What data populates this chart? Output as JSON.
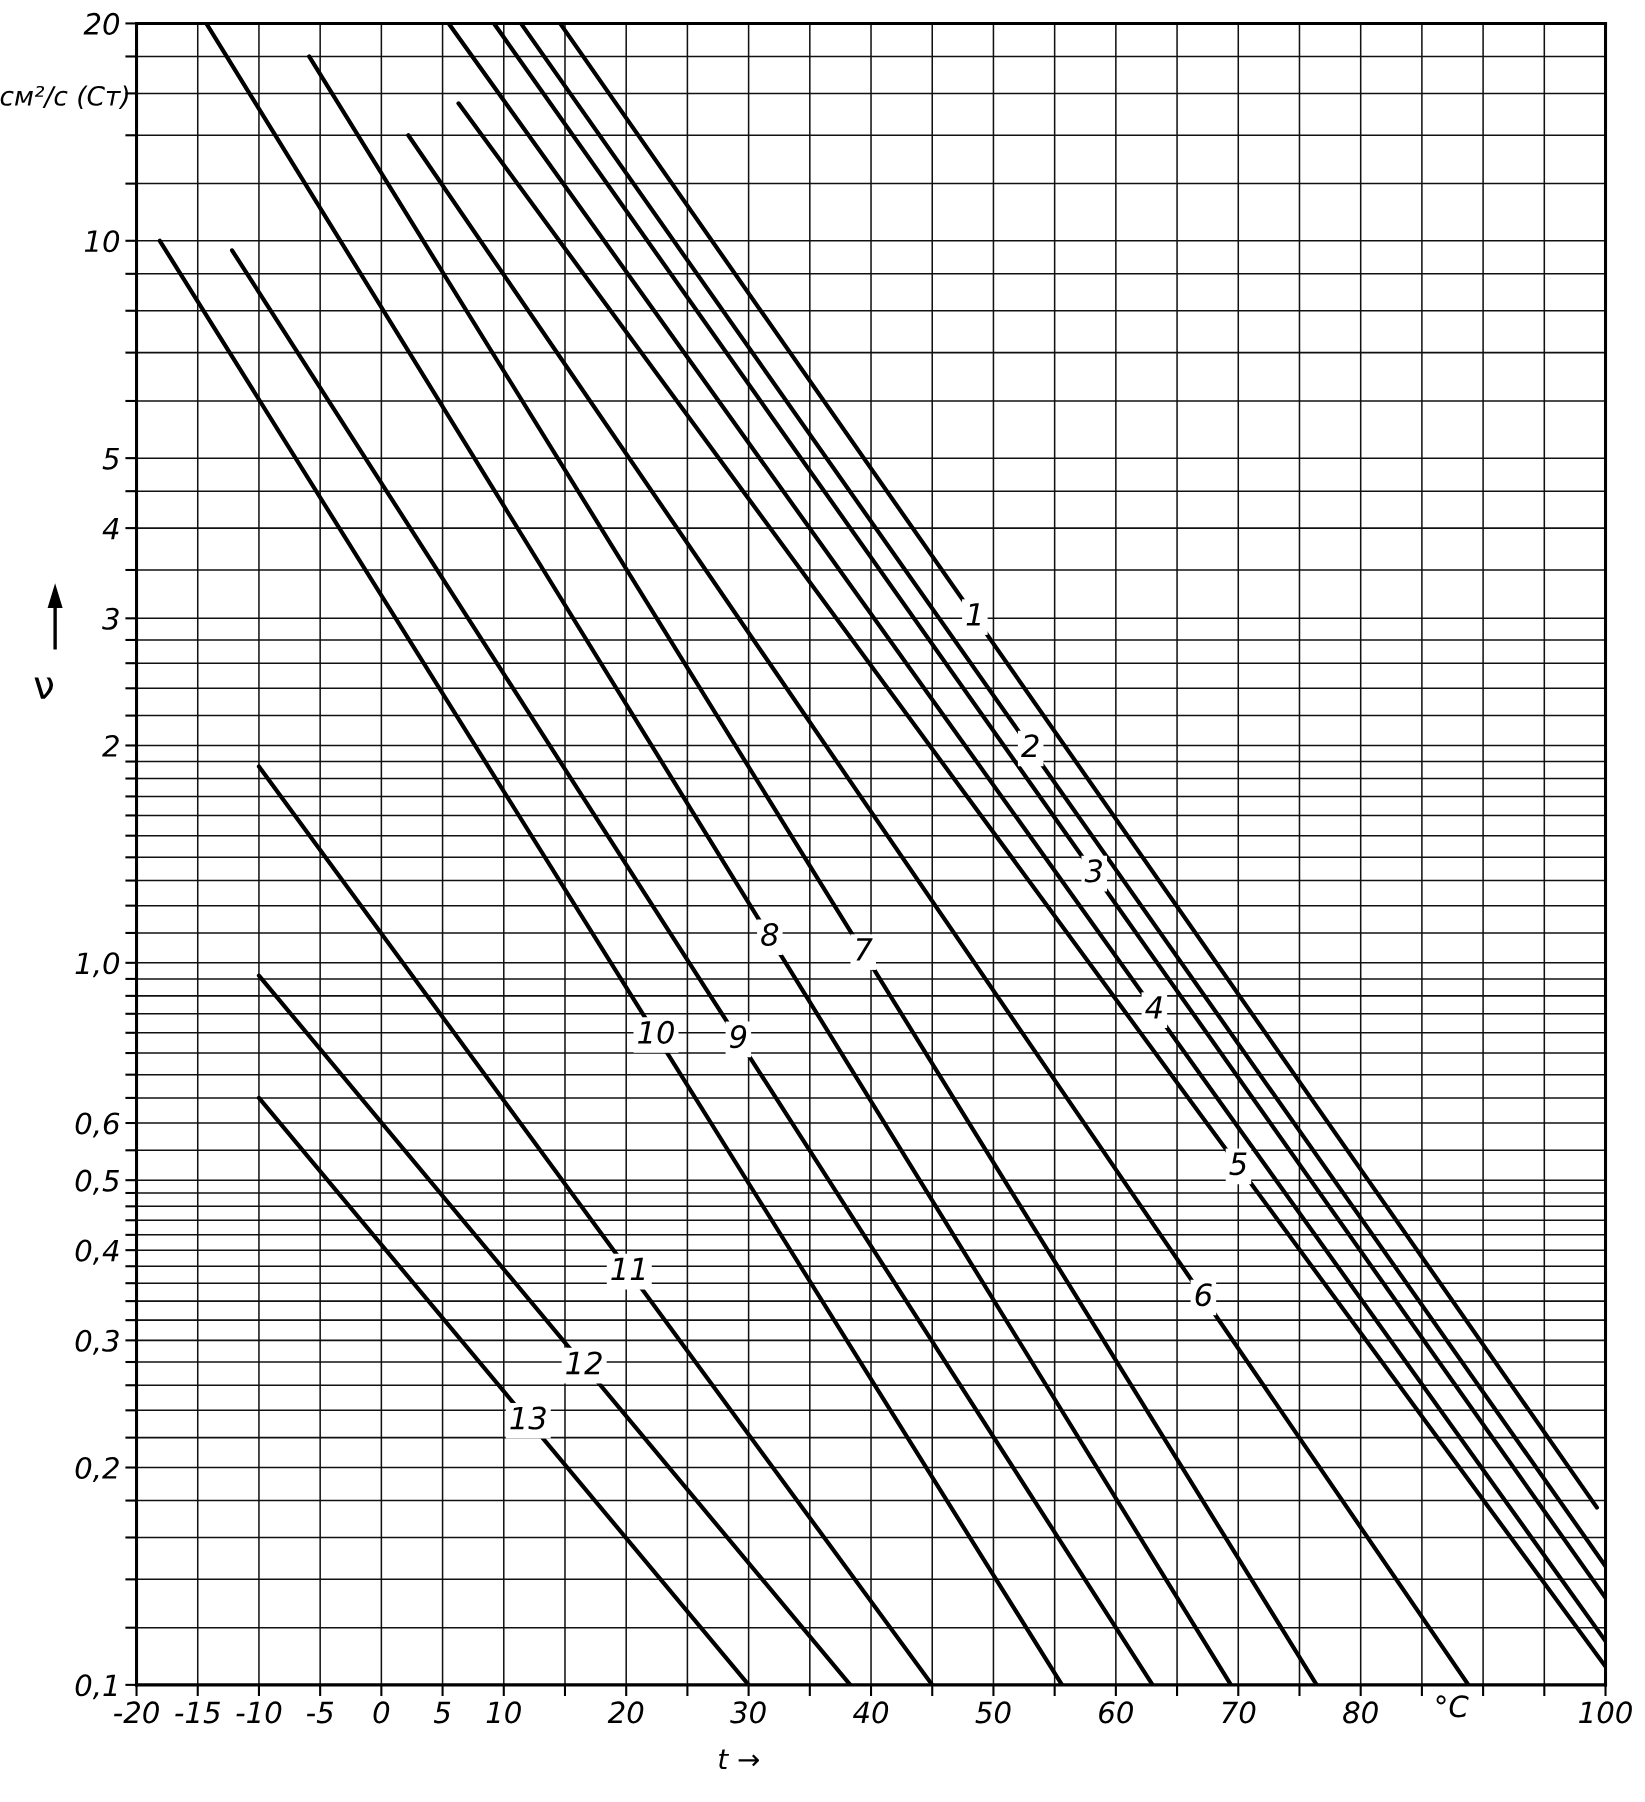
{
  "chart_data": {
    "type": "line",
    "xlabel": "t →",
    "ylabel": "ν",
    "log": true,
    "grid": true,
    "marker": "none",
    "line_style": "solid",
    "annotations": [
      "см²/с (Ст)",
      "°C"
    ],
    "xlim": [
      -20,
      100
    ],
    "ylim": [
      0.1,
      20
    ],
    "xticks": [
      -20,
      -15,
      -10,
      -5,
      0,
      5,
      10,
      {
        "value": 15,
        "label": null
      },
      20,
      {
        "value": 25,
        "label": null
      },
      30,
      {
        "value": 35,
        "label": null
      },
      40,
      {
        "value": 45,
        "label": null
      },
      50,
      {
        "value": 55,
        "label": null
      },
      60,
      {
        "value": 65,
        "label": null
      },
      70,
      {
        "value": 75,
        "label": null
      },
      80,
      {
        "value": 85,
        "label": null
      },
      {
        "value": 90,
        "label": null
      },
      {
        "value": 95,
        "label": null
      },
      100
    ],
    "yticks": [
      {
        "value": 0.1,
        "label": "0,1"
      },
      {
        "value": 0.12,
        "label": null
      },
      {
        "value": 0.14,
        "label": null
      },
      {
        "value": 0.16,
        "label": null
      },
      {
        "value": 0.18,
        "label": null
      },
      {
        "value": 0.2,
        "label": "0,2"
      },
      {
        "value": 0.22,
        "label": null
      },
      {
        "value": 0.24,
        "label": null
      },
      {
        "value": 0.26,
        "label": null
      },
      {
        "value": 0.28,
        "label": null
      },
      {
        "value": 0.3,
        "label": "0,3"
      },
      {
        "value": 0.32,
        "label": null
      },
      {
        "value": 0.34,
        "label": null
      },
      {
        "value": 0.36,
        "label": null
      },
      {
        "value": 0.38,
        "label": null
      },
      {
        "value": 0.4,
        "label": "0,4"
      },
      {
        "value": 0.42,
        "label": null
      },
      {
        "value": 0.44,
        "label": null
      },
      {
        "value": 0.46,
        "label": null
      },
      {
        "value": 0.48,
        "label": null
      },
      {
        "value": 0.5,
        "label": "0,5"
      },
      {
        "value": 0.55,
        "label": null
      },
      {
        "value": 0.6,
        "label": "0,6"
      },
      {
        "value": 0.65,
        "label": null
      },
      {
        "value": 0.7,
        "label": null
      },
      {
        "value": 0.75,
        "label": null
      },
      {
        "value": 0.8,
        "label": null
      },
      {
        "value": 0.85,
        "label": null
      },
      {
        "value": 0.9,
        "label": null
      },
      {
        "value": 0.95,
        "label": null
      },
      {
        "value": 1,
        "label": "1,0"
      },
      {
        "value": 1.1,
        "label": null
      },
      {
        "value": 1.2,
        "label": null
      },
      {
        "value": 1.3,
        "label": null
      },
      {
        "value": 1.4,
        "label": null
      },
      {
        "value": 1.5,
        "label": null
      },
      {
        "value": 1.6,
        "label": null
      },
      {
        "value": 1.7,
        "label": null
      },
      {
        "value": 1.8,
        "label": null
      },
      {
        "value": 1.9,
        "label": null
      },
      2,
      {
        "value": 2.2,
        "label": null
      },
      {
        "value": 2.4,
        "label": null
      },
      {
        "value": 2.6,
        "label": null
      },
      {
        "value": 2.8,
        "label": null
      },
      3,
      {
        "value": 3.5,
        "label": null
      },
      4,
      {
        "value": 4.5,
        "label": null
      },
      5,
      {
        "value": 6,
        "label": null
      },
      {
        "value": 7,
        "label": null
      },
      {
        "value": 8,
        "label": null
      },
      {
        "value": 9,
        "label": null
      },
      10,
      {
        "value": 12,
        "label": null
      },
      {
        "value": 14,
        "label": null
      },
      {
        "value": 16,
        "label": null
      },
      {
        "value": 18,
        "label": null
      },
      20
    ],
    "series": [
      {
        "name": "1",
        "color": "#000000",
        "x": [
          14.6,
          99.3
        ],
        "values": [
          20,
          0.176
        ]
      },
      {
        "name": "2",
        "color": "#000000",
        "x": [
          11.4,
          100
        ],
        "values": [
          20,
          0.146
        ]
      },
      {
        "name": "3",
        "color": "#000000",
        "x": [
          9.2,
          100
        ],
        "values": [
          20,
          0.132
        ]
      },
      {
        "name": "4",
        "color": "#000000",
        "x": [
          5.5,
          100
        ],
        "values": [
          20,
          0.115
        ]
      },
      {
        "name": "5",
        "color": "#000000",
        "x": [
          6.3,
          100
        ],
        "values": [
          15.5,
          0.106
        ]
      },
      {
        "name": "6",
        "color": "#000000",
        "x": [
          2.2,
          88.8
        ],
        "values": [
          14,
          0.1
        ]
      },
      {
        "name": "7",
        "color": "#000000",
        "x": [
          -5.9,
          76.4
        ],
        "values": [
          18,
          0.1
        ]
      },
      {
        "name": "8",
        "color": "#000000",
        "x": [
          -14.3,
          69.4
        ],
        "values": [
          20,
          0.1
        ]
      },
      {
        "name": "9",
        "color": "#000000",
        "x": [
          -12.2,
          63.0
        ],
        "values": [
          9.7,
          0.1
        ]
      },
      {
        "name": "10",
        "color": "#000000",
        "x": [
          -18.1,
          55.6
        ],
        "values": [
          10,
          0.1
        ]
      },
      {
        "name": "11",
        "color": "#000000",
        "x": [
          -10,
          45.0
        ],
        "values": [
          1.87,
          0.1
        ]
      },
      {
        "name": "12",
        "color": "#000000",
        "x": [
          -10,
          38.3
        ],
        "values": [
          0.96,
          0.1
        ]
      },
      {
        "name": "13",
        "color": "#000000",
        "x": [
          -10,
          30
        ],
        "values": [
          0.65,
          0.1
        ]
      }
    ]
  }
}
